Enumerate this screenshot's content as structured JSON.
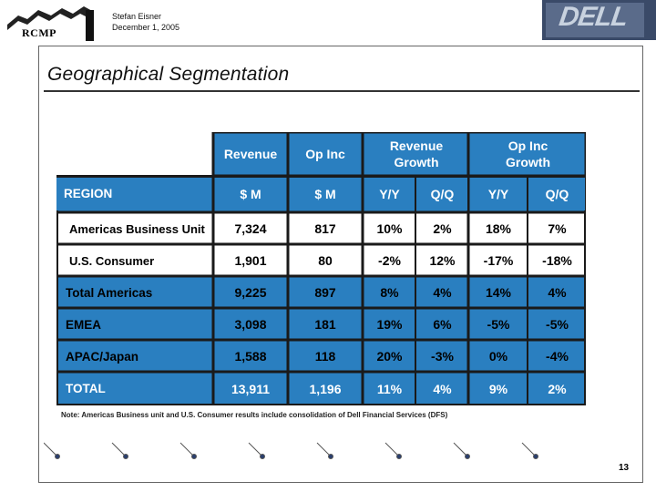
{
  "header": {
    "org_logo_text": "RCMP",
    "author": "Stefan Eisner",
    "date": "December 1, 2005",
    "brand_logo_text": "DELL"
  },
  "slide": {
    "title": "Geographical Segmentation",
    "page_number": "13",
    "note": "Note: Americas Business unit and U.S. Consumer results include consolidation of Dell Financial Services (DFS)"
  },
  "table": {
    "group_headers": {
      "revenue": "Revenue",
      "op_inc": "Op Inc",
      "revenue_growth": "Revenue Growth",
      "op_inc_growth": "Op Inc Growth"
    },
    "sub_headers": {
      "region": "REGION",
      "revenue_unit": "$ M",
      "op_inc_unit": "$ M",
      "rev_yy": "Y/Y",
      "rev_qq": "Q/Q",
      "op_yy": "Y/Y",
      "op_qq": "Q/Q"
    },
    "rows": [
      {
        "region": "Americas Business Unit",
        "revenue": "7,324",
        "op_inc": "817",
        "rev_yy": "10%",
        "rev_qq": "2%",
        "op_yy": "18%",
        "op_qq": "7%"
      },
      {
        "region": "U.S. Consumer",
        "revenue": "1,901",
        "op_inc": "80",
        "rev_yy": "-2%",
        "rev_qq": "12%",
        "op_yy": "-17%",
        "op_qq": "-18%"
      },
      {
        "region": "Total Americas",
        "revenue": "9,225",
        "op_inc": "897",
        "rev_yy": "8%",
        "rev_qq": "4%",
        "op_yy": "14%",
        "op_qq": "4%"
      },
      {
        "region": "EMEA",
        "revenue": "3,098",
        "op_inc": "181",
        "rev_yy": "19%",
        "rev_qq": "6%",
        "op_yy": "-5%",
        "op_qq": "-5%"
      },
      {
        "region": "APAC/Japan",
        "revenue": "1,588",
        "op_inc": "118",
        "rev_yy": "20%",
        "rev_qq": "-3%",
        "op_yy": "0%",
        "op_qq": "-4%"
      },
      {
        "region": "TOTAL",
        "revenue": "13,911",
        "op_inc": "1,196",
        "rev_yy": "11%",
        "rev_qq": "4%",
        "op_yy": "9%",
        "op_qq": "2%"
      }
    ]
  },
  "colors": {
    "table_blue": "#2a7fc0",
    "grid_dark": "#1a1a1a"
  }
}
